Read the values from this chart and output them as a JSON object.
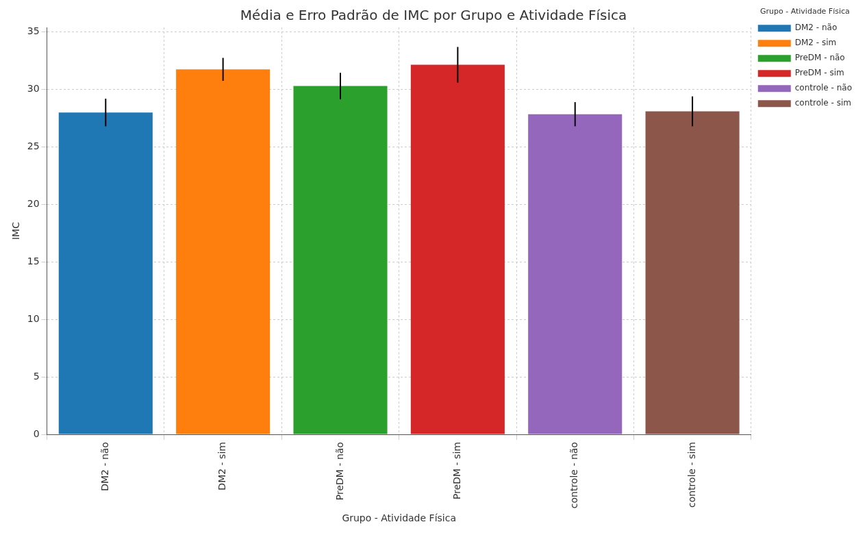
{
  "chart_data": {
    "type": "bar",
    "title": "Média e Erro Padrão de IMC por Grupo e Atividade Física",
    "xlabel": "Grupo - Atividade Física",
    "ylabel": "IMC",
    "legend_title": "Grupo - Atividade Física",
    "categories": [
      "DM2 - não",
      "DM2 - sim",
      "PreDM - não",
      "PreDM - sim",
      "controle - não",
      "controle - sim"
    ],
    "series": [
      {
        "name": "DM2 - não",
        "color": "#1f77b4",
        "values": [
          28.0,
          null,
          null,
          null,
          null,
          null
        ],
        "errors": [
          1.2,
          null,
          null,
          null,
          null,
          null
        ]
      },
      {
        "name": "DM2 - sim",
        "color": "#ff7f0e",
        "values": [
          null,
          31.75,
          null,
          null,
          null,
          null
        ],
        "errors": [
          null,
          1.0,
          null,
          null,
          null,
          null
        ]
      },
      {
        "name": "PreDM - não",
        "color": "#2ca02c",
        "values": [
          null,
          null,
          30.3,
          null,
          null,
          null
        ],
        "errors": [
          null,
          null,
          1.15,
          null,
          null,
          null
        ]
      },
      {
        "name": "PreDM - sim",
        "color": "#d62728",
        "values": [
          null,
          null,
          null,
          32.15,
          null,
          null
        ],
        "errors": [
          null,
          null,
          null,
          1.55,
          null,
          null
        ]
      },
      {
        "name": "controle - não",
        "color": "#9467bd",
        "values": [
          null,
          null,
          null,
          null,
          27.85,
          null
        ],
        "errors": [
          null,
          null,
          null,
          null,
          1.05,
          null
        ]
      },
      {
        "name": "controle - sim",
        "color": "#8c564b",
        "values": [
          null,
          null,
          null,
          null,
          null,
          28.1
        ],
        "errors": [
          null,
          null,
          null,
          null,
          null,
          1.3
        ]
      }
    ],
    "ylim": [
      0,
      35.4
    ],
    "yticks": [
      0,
      5,
      10,
      15,
      20,
      25,
      30,
      35
    ],
    "grid": true,
    "legend": "top right"
  }
}
